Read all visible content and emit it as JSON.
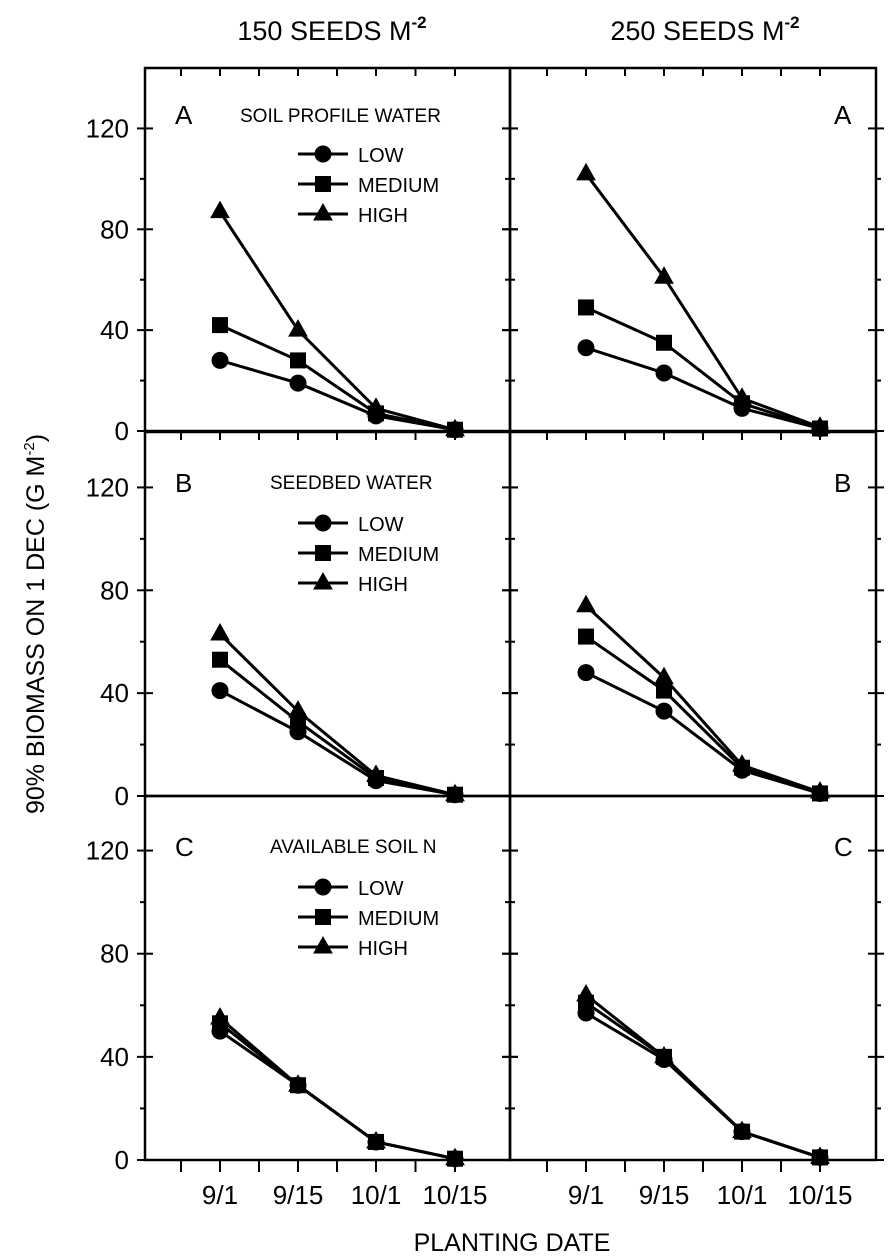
{
  "figure": {
    "column_titles": [
      {
        "text": "150 SEEDS M",
        "sup": "-2"
      },
      {
        "text": "250 SEEDS M",
        "sup": "-2"
      }
    ],
    "ylabel": {
      "text": "90% BIOMASS ON 1 DEC (G M",
      "sup": "-2",
      "suffix": ")"
    },
    "xlabel": "PLANTING DATE"
  },
  "chart_data": [
    {
      "type": "line",
      "panel": "A",
      "column_title": "150 SEEDS M-2",
      "legend_title": "SOIL PROFILE WATER",
      "x": [
        "9/1",
        "9/15",
        "10/1",
        "10/15"
      ],
      "ylim": [
        0,
        140
      ],
      "yticks": [
        0,
        40,
        80,
        120
      ],
      "series": [
        {
          "name": "LOW",
          "marker": "circle",
          "values": [
            28,
            19,
            6,
            0.5
          ]
        },
        {
          "name": "MEDIUM",
          "marker": "square",
          "values": [
            42,
            28,
            7,
            0.5
          ]
        },
        {
          "name": "HIGH",
          "marker": "triangle",
          "values": [
            87,
            40,
            9,
            0.5
          ]
        }
      ]
    },
    {
      "type": "line",
      "panel": "A",
      "column_title": "250 SEEDS M-2",
      "legend_title": "",
      "x": [
        "9/1",
        "9/15",
        "10/1",
        "10/15"
      ],
      "ylim": [
        0,
        140
      ],
      "yticks": [
        0,
        40,
        80,
        120
      ],
      "series": [
        {
          "name": "LOW",
          "marker": "circle",
          "values": [
            33,
            23,
            9,
            1
          ]
        },
        {
          "name": "MEDIUM",
          "marker": "square",
          "values": [
            49,
            35,
            11,
            1
          ]
        },
        {
          "name": "HIGH",
          "marker": "triangle",
          "values": [
            102,
            61,
            13,
            1.5
          ]
        }
      ]
    },
    {
      "type": "line",
      "panel": "B",
      "column_title": "150 SEEDS M-2",
      "legend_title": "SEEDBED WATER",
      "x": [
        "9/1",
        "9/15",
        "10/1",
        "10/15"
      ],
      "ylim": [
        0,
        140
      ],
      "yticks": [
        0,
        40,
        80,
        120
      ],
      "series": [
        {
          "name": "LOW",
          "marker": "circle",
          "values": [
            41,
            25,
            6,
            0.5
          ]
        },
        {
          "name": "MEDIUM",
          "marker": "square",
          "values": [
            53,
            29,
            7,
            0.5
          ]
        },
        {
          "name": "HIGH",
          "marker": "triangle",
          "values": [
            63,
            33,
            8,
            0.5
          ]
        }
      ]
    },
    {
      "type": "line",
      "panel": "B",
      "column_title": "250 SEEDS M-2",
      "legend_title": "",
      "x": [
        "9/1",
        "9/15",
        "10/1",
        "10/15"
      ],
      "ylim": [
        0,
        140
      ],
      "yticks": [
        0,
        40,
        80,
        120
      ],
      "series": [
        {
          "name": "LOW",
          "marker": "circle",
          "values": [
            48,
            33,
            10,
            1
          ]
        },
        {
          "name": "MEDIUM",
          "marker": "square",
          "values": [
            62,
            41,
            11,
            1
          ]
        },
        {
          "name": "HIGH",
          "marker": "triangle",
          "values": [
            74,
            46,
            12,
            1.5
          ]
        }
      ]
    },
    {
      "type": "line",
      "panel": "C",
      "column_title": "150 SEEDS M-2",
      "legend_title": "AVAILABLE SOIL N",
      "x": [
        "9/1",
        "9/15",
        "10/1",
        "10/15"
      ],
      "ylim": [
        0,
        140
      ],
      "yticks": [
        0,
        40,
        80,
        120
      ],
      "series": [
        {
          "name": "LOW",
          "marker": "circle",
          "values": [
            50,
            29,
            7,
            0.5
          ]
        },
        {
          "name": "MEDIUM",
          "marker": "square",
          "values": [
            53,
            29,
            7,
            0.5
          ]
        },
        {
          "name": "HIGH",
          "marker": "triangle",
          "values": [
            55,
            29,
            7,
            0.5
          ]
        }
      ]
    },
    {
      "type": "line",
      "panel": "C",
      "column_title": "250 SEEDS M-2",
      "legend_title": "",
      "x": [
        "9/1",
        "9/15",
        "10/1",
        "10/15"
      ],
      "ylim": [
        0,
        140
      ],
      "yticks": [
        0,
        40,
        80,
        120
      ],
      "series": [
        {
          "name": "LOW",
          "marker": "circle",
          "values": [
            57,
            39,
            11,
            1
          ]
        },
        {
          "name": "MEDIUM",
          "marker": "square",
          "values": [
            61,
            40,
            11,
            1
          ]
        },
        {
          "name": "HIGH",
          "marker": "triangle",
          "values": [
            64,
            40,
            11,
            1
          ]
        }
      ]
    }
  ]
}
